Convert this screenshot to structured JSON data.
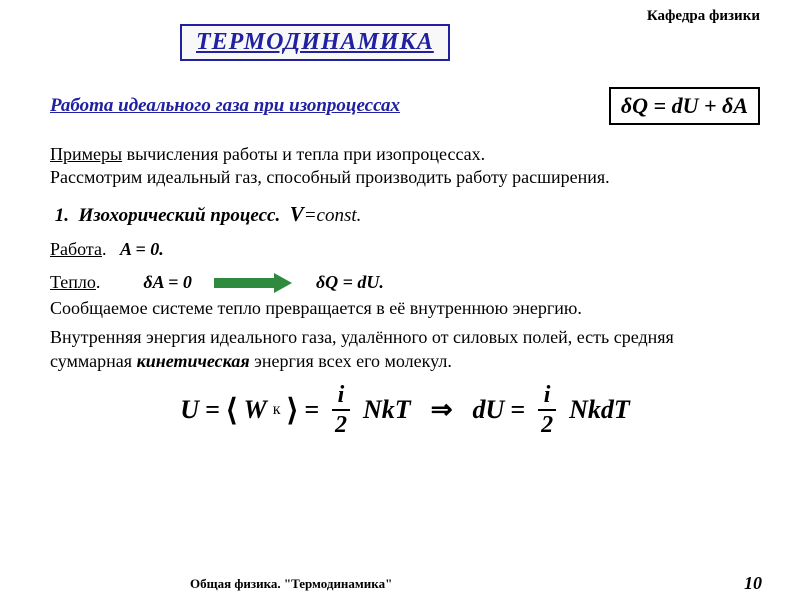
{
  "header": {
    "department": "Кафедра физики",
    "title": "ТЕРМОДИНАМИКА"
  },
  "section": {
    "heading": "Работа идеального газа при изопроцессах",
    "main_formula": "δQ = dU + δA"
  },
  "intro": {
    "line1_u": "Примеры",
    "line1_rest": " вычисления работы и тепла   при изопроцессах.",
    "line2": "Рассмотрим идеальный газ, способный производить работу расширения."
  },
  "process": {
    "num": "1.",
    "name": "Изохорический процесс.",
    "var": "V",
    "eq": "=const."
  },
  "work": {
    "label": "Работа",
    "eq": "A = 0."
  },
  "heat": {
    "label": "Тепло",
    "eq1": "δA = 0",
    "eq2": "δQ = dU."
  },
  "para1": "Сообщаемое системе тепло превращается в её внутреннюю энергию.",
  "para2": {
    "t1": "Внутренняя энергия идеального газа, удалённого от силовых полей, есть средняя суммарная ",
    "kin": "кинетическая",
    "t2": "  энергия всех его молекул."
  },
  "formula": {
    "U": "U",
    "eq": "=",
    "W": "W",
    "Wsub": "к",
    "frac_num": "i",
    "frac_den": "2",
    "NkT": "NkT",
    "dU": "dU",
    "NkdT": "NkdT"
  },
  "footer": {
    "text": "Общая физика. \"Термодинамика\"",
    "page": "10"
  },
  "colors": {
    "accent": "#2020a0",
    "arrow": "#2e8b3e",
    "text": "#000000",
    "background": "#ffffff"
  }
}
